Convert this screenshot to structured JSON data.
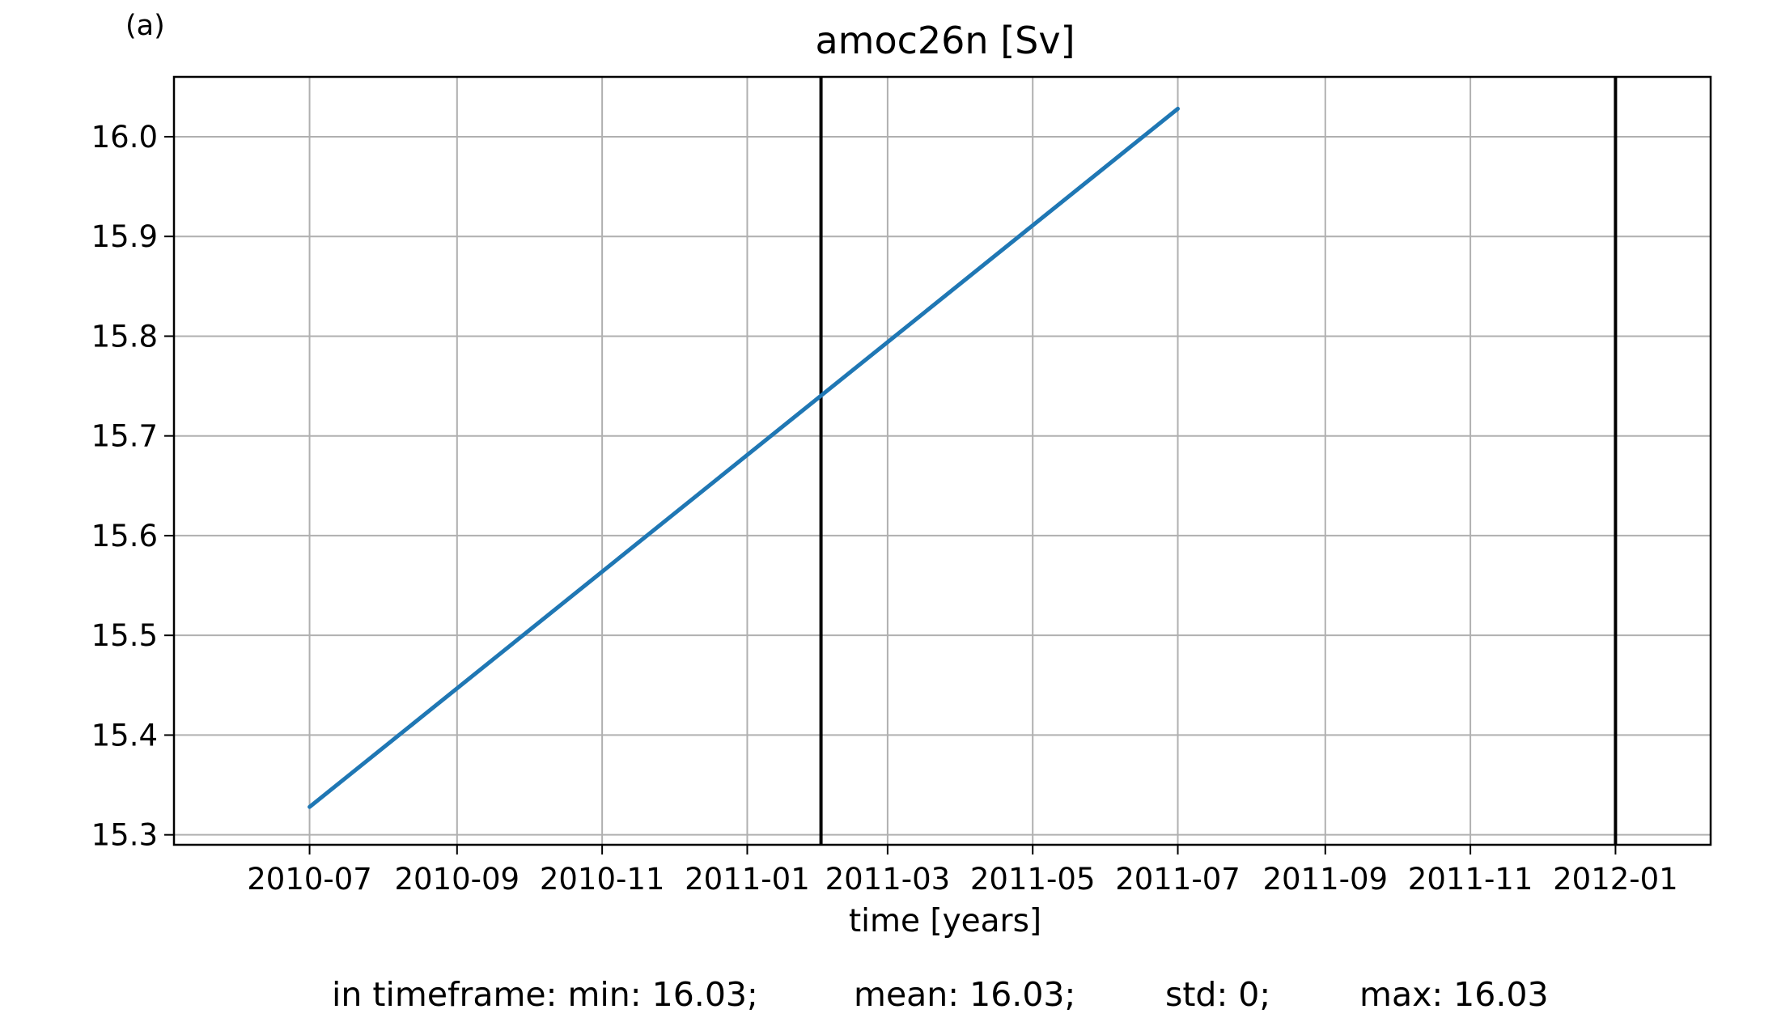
{
  "panel_label": "(a)",
  "chart_data": {
    "type": "line",
    "title": "amoc26n [Sv]",
    "xlabel": "time [years]",
    "ylabel": "",
    "x_ticks": [
      "2010-07",
      "2010-09",
      "2010-11",
      "2011-01",
      "2011-03",
      "2011-05",
      "2011-07",
      "2011-09",
      "2011-11",
      "2012-01"
    ],
    "y_ticks": [
      "15.3",
      "15.4",
      "15.5",
      "15.6",
      "15.7",
      "15.8",
      "15.9",
      "16.0"
    ],
    "xlim": [
      "2010-05-05",
      "2012-02-10"
    ],
    "ylim": [
      15.29,
      16.06
    ],
    "grid": true,
    "series": [
      {
        "x": [
          "2010-07-01",
          "2011-07-01"
        ],
        "values": [
          15.328,
          16.028
        ],
        "color": "#1f77b4"
      }
    ],
    "vlines": [
      {
        "x": "2011-02-01",
        "color": "#000000"
      },
      {
        "x": "2012-01-01",
        "color": "#000000"
      }
    ]
  },
  "stats": {
    "min": "in timeframe: min: 16.03;",
    "mean": "mean: 16.03;",
    "std": "std: 0;",
    "max": "max: 16.03"
  }
}
